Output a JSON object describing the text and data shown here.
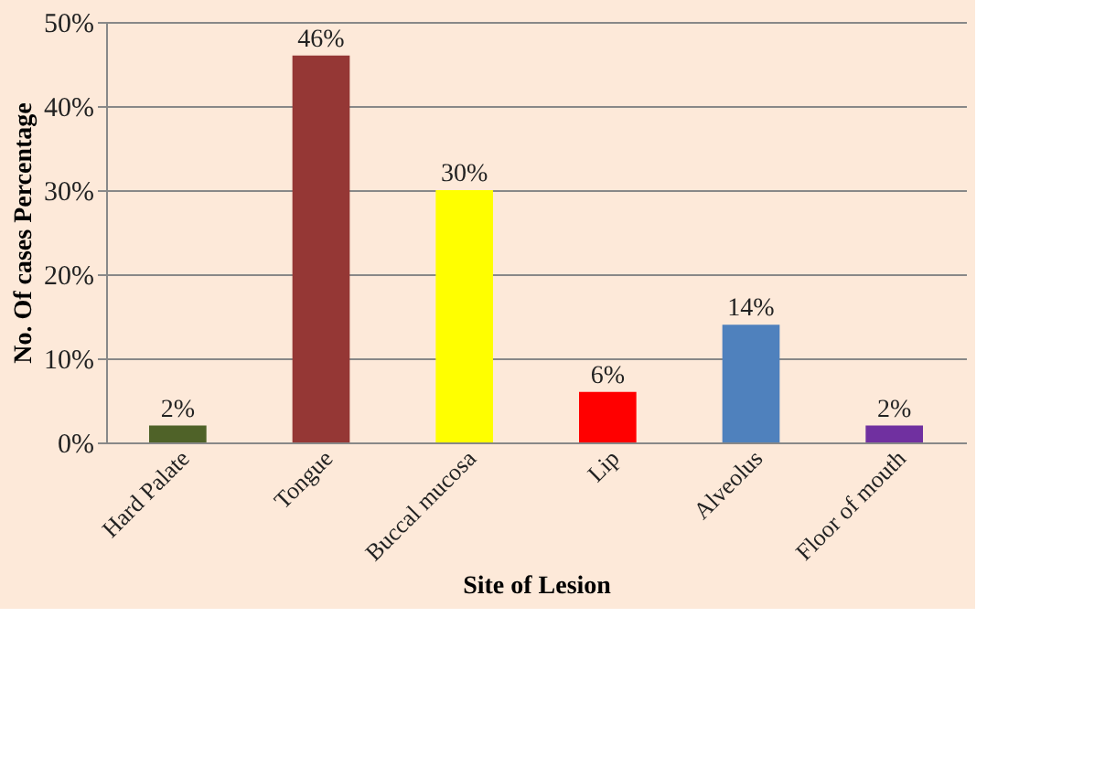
{
  "chart_data": {
    "type": "bar",
    "xlabel": "Site of Lesion",
    "ylabel": "No. Of cases Percentage",
    "categories": [
      "Hard Palate",
      "Tongue",
      "Buccal mucosa",
      "Lip",
      "Alveolus",
      "Floor of mouth"
    ],
    "values": [
      2,
      46,
      30,
      6,
      14,
      2
    ],
    "colors": [
      "#4f6228",
      "#953735",
      "#ffff00",
      "#ff0000",
      "#4f81bd",
      "#7030a0"
    ],
    "value_labels": [
      "2%",
      "46%",
      "30%",
      "6%",
      "14%",
      "2%"
    ],
    "ylim": [
      0,
      50
    ],
    "yticks": [
      {
        "value": 0,
        "label": "0%"
      },
      {
        "value": 10,
        "label": "10%"
      },
      {
        "value": 20,
        "label": "20%"
      },
      {
        "value": 30,
        "label": "30%"
      },
      {
        "value": 40,
        "label": "40%"
      },
      {
        "value": 50,
        "label": "50%"
      }
    ],
    "grid": "y"
  }
}
